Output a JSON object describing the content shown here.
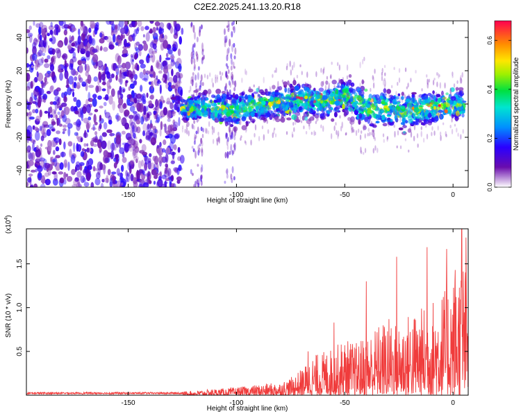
{
  "title": "C2E2.2025.241.13.20.R18",
  "chart_data": [
    {
      "id": "spectrogram",
      "type": "heatmap",
      "xlabel": "Height of straight line (km)",
      "ylabel": "Frequency (Hz)",
      "xlim": [
        -197,
        7
      ],
      "ylim": [
        -50,
        50
      ],
      "xticks": [
        -150,
        -100,
        -50,
        0
      ],
      "yticks": [
        -40,
        -20,
        0,
        20,
        40
      ],
      "noise_region_km": [
        -197,
        -125
      ],
      "signal_band": {
        "x": [
          -125,
          -115,
          -105,
          -100,
          -95,
          -90,
          -85,
          -80,
          -75,
          -70,
          -65,
          -60,
          -55,
          -50,
          -45,
          -40,
          -35,
          -30,
          -25,
          -20,
          -15,
          -10,
          -5,
          0,
          5
        ],
        "center_hz": [
          -3,
          -2,
          -3,
          -4,
          -2,
          -1,
          0,
          1,
          2,
          3,
          2,
          1,
          3,
          5,
          1,
          -2,
          -3,
          -2,
          -4,
          -4,
          -3,
          -2,
          -1,
          -1,
          -1
        ],
        "width_hz": [
          6,
          8,
          9,
          10,
          9,
          8,
          8,
          8,
          9,
          9,
          9,
          9,
          10,
          10,
          11,
          12,
          11,
          10,
          10,
          10,
          9,
          9,
          8,
          8,
          8
        ]
      },
      "colorbar": {
        "label": "Normalized spectral amplitude",
        "range": [
          0,
          0.68
        ],
        "ticks": [
          0,
          0.2,
          0.4,
          0.6
        ],
        "tick_labels": [
          "0.0",
          "0.2",
          "0.4",
          "0.6"
        ]
      }
    },
    {
      "id": "snr",
      "type": "line",
      "xlabel": "Height of straight line (km)",
      "ylabel": "SNR (10 * v/v)",
      "y_multiplier": "(x10",
      "y_multiplier_exp": "4",
      "xlim": [
        -197,
        7
      ],
      "ylim": [
        0,
        19000
      ],
      "xticks": [
        -150,
        -100,
        -50,
        0
      ],
      "yticks": [
        5000,
        10000,
        15000
      ],
      "ytick_labels": [
        "0.5",
        "1.0",
        "1.5"
      ],
      "series_color": "#f03c3c",
      "envelope": {
        "x": [
          -197,
          -130,
          -120,
          -110,
          -100,
          -90,
          -80,
          -75,
          -70,
          -65,
          -60,
          -55,
          -50,
          -45,
          -40,
          -35,
          -30,
          -25,
          -20,
          -15,
          -10,
          -5,
          0,
          5,
          7
        ],
        "y": [
          300,
          350,
          500,
          700,
          900,
          1200,
          1500,
          2000,
          3000,
          4500,
          5000,
          5500,
          6500,
          6000,
          7000,
          8000,
          9000,
          8500,
          9500,
          10000,
          11000,
          12000,
          14000,
          16000,
          13000
        ]
      },
      "peaks": [
        [
          -67,
          5000
        ],
        [
          -55,
          8300
        ],
        [
          -40,
          13000
        ],
        [
          -26,
          15800
        ],
        [
          -12,
          16900
        ],
        [
          -3,
          16700
        ],
        [
          1,
          14300
        ],
        [
          4,
          19000
        ],
        [
          6,
          18000
        ]
      ]
    }
  ]
}
